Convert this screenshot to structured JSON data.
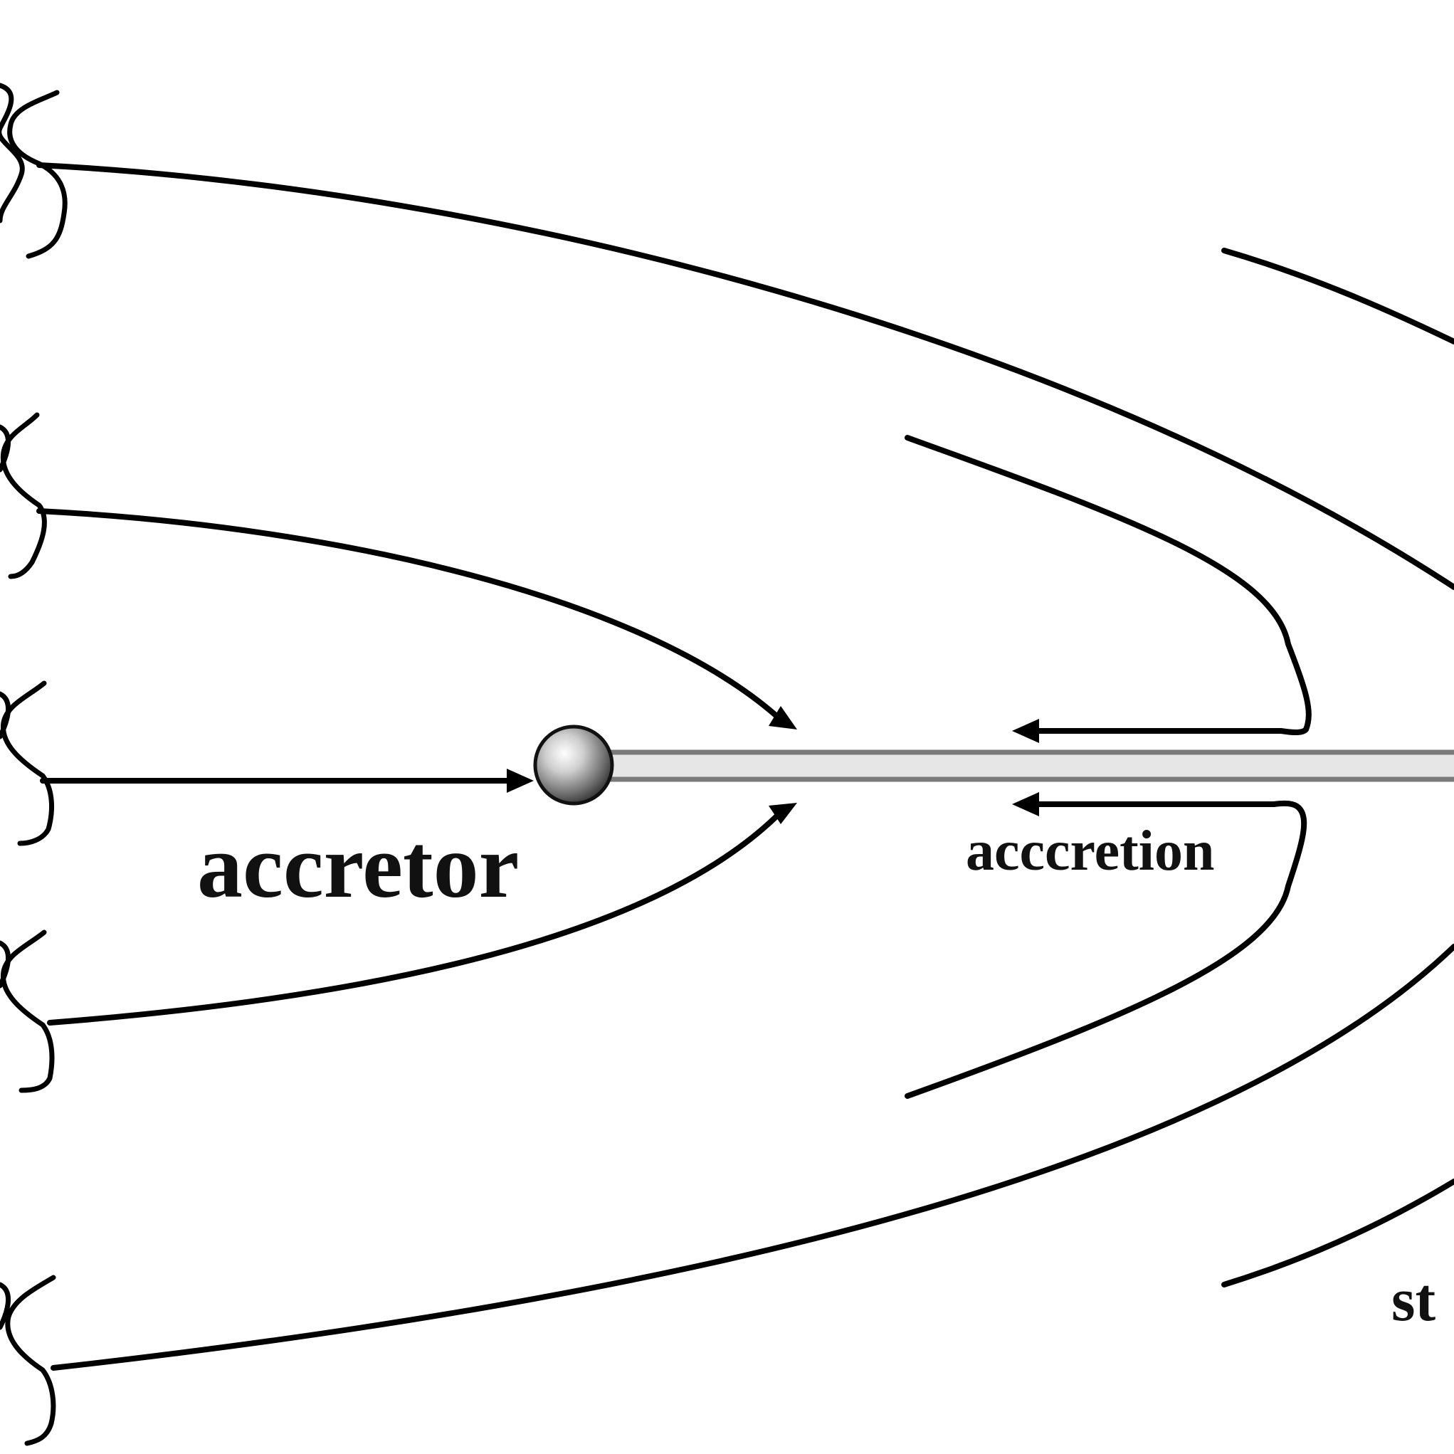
{
  "labels": {
    "accretor": "accretor",
    "accretion": "acccretion",
    "star_partial": "st"
  },
  "colors": {
    "line": "#000000",
    "background": "#ffffff",
    "tail_outline": "#7a7a7a",
    "tail_fill": "#e6e6e6"
  }
}
